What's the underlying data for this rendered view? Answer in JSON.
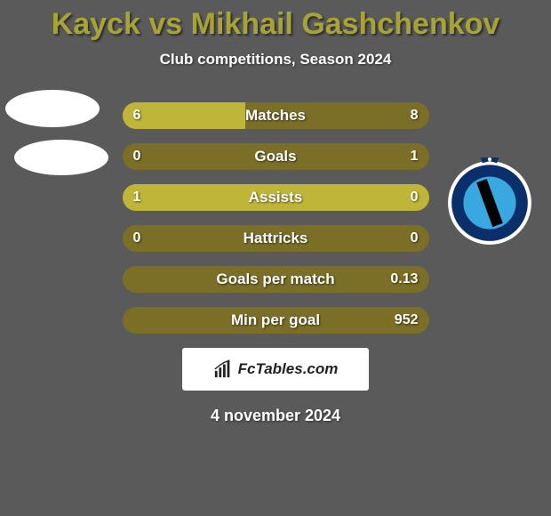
{
  "title": {
    "player1": "Kayck",
    "vs": "vs",
    "player2": "Mikhail Gashchenkov",
    "color": "#a8a337",
    "fontsize": 34
  },
  "subtitle": "Club competitions, Season 2024",
  "colors": {
    "background": "#5a5a5a",
    "bar_track": "#7b6f27",
    "bar_fill": "#bfb539",
    "text": "#ffffff"
  },
  "bars": [
    {
      "label": "Matches",
      "left": "6",
      "right": "8",
      "left_pct": 40,
      "right_pct": 0
    },
    {
      "label": "Goals",
      "left": "0",
      "right": "1",
      "left_pct": 0,
      "right_pct": 0
    },
    {
      "label": "Assists",
      "left": "1",
      "right": "0",
      "left_pct": 100,
      "right_pct": 0
    },
    {
      "label": "Hattricks",
      "left": "0",
      "right": "0",
      "left_pct": 0,
      "right_pct": 0
    },
    {
      "label": "Goals per match",
      "left": "",
      "right": "0.13",
      "left_pct": 0,
      "right_pct": 0
    },
    {
      "label": "Min per goal",
      "left": "",
      "right": "952",
      "left_pct": 0,
      "right_pct": 0
    }
  ],
  "watermark": "FcTables.com",
  "date": "4 november 2024",
  "club_badge": {
    "outer_bg": "#ffffff",
    "ring_color": "#0a2f6b",
    "inner_bg": "#39a7e0",
    "stripe_color": "#000000"
  }
}
